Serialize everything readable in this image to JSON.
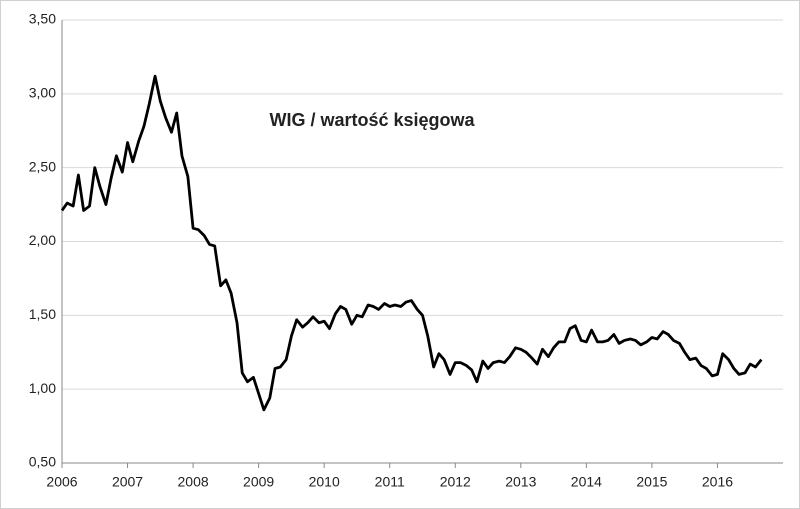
{
  "chart_data": {
    "type": "line",
    "title": "WIG / wartość księgowa",
    "x": [
      2006.0,
      2006.08,
      2006.17,
      2006.25,
      2006.33,
      2006.42,
      2006.5,
      2006.58,
      2006.67,
      2006.75,
      2006.83,
      2006.92,
      2007.0,
      2007.08,
      2007.17,
      2007.25,
      2007.33,
      2007.42,
      2007.5,
      2007.58,
      2007.67,
      2007.75,
      2007.83,
      2007.92,
      2008.0,
      2008.08,
      2008.17,
      2008.25,
      2008.33,
      2008.42,
      2008.5,
      2008.58,
      2008.67,
      2008.75,
      2008.83,
      2008.92,
      2009.0,
      2009.08,
      2009.17,
      2009.25,
      2009.33,
      2009.42,
      2009.5,
      2009.58,
      2009.67,
      2009.75,
      2009.83,
      2009.92,
      2010.0,
      2010.08,
      2010.17,
      2010.25,
      2010.33,
      2010.42,
      2010.5,
      2010.58,
      2010.67,
      2010.75,
      2010.83,
      2010.92,
      2011.0,
      2011.08,
      2011.17,
      2011.25,
      2011.33,
      2011.42,
      2011.5,
      2011.58,
      2011.67,
      2011.75,
      2011.83,
      2011.92,
      2012.0,
      2012.08,
      2012.17,
      2012.25,
      2012.33,
      2012.42,
      2012.5,
      2012.58,
      2012.67,
      2012.75,
      2012.83,
      2012.92,
      2013.0,
      2013.08,
      2013.17,
      2013.25,
      2013.33,
      2013.42,
      2013.5,
      2013.58,
      2013.67,
      2013.75,
      2013.83,
      2013.92,
      2014.0,
      2014.08,
      2014.17,
      2014.25,
      2014.33,
      2014.42,
      2014.5,
      2014.58,
      2014.67,
      2014.75,
      2014.83,
      2014.92,
      2015.0,
      2015.08,
      2015.17,
      2015.25,
      2015.33,
      2015.42,
      2015.5,
      2015.58,
      2015.67,
      2015.75,
      2015.83,
      2015.92,
      2016.0,
      2016.08,
      2016.17,
      2016.25,
      2016.33,
      2016.42,
      2016.5,
      2016.58,
      2016.67
    ],
    "series": [
      {
        "color": "#000000",
        "values": [
          2.21,
          2.26,
          2.24,
          2.45,
          2.21,
          2.24,
          2.5,
          2.37,
          2.25,
          2.43,
          2.58,
          2.47,
          2.67,
          2.54,
          2.68,
          2.78,
          2.93,
          3.12,
          2.95,
          2.84,
          2.74,
          2.87,
          2.58,
          2.44,
          2.09,
          2.08,
          2.04,
          1.98,
          1.97,
          1.7,
          1.74,
          1.65,
          1.45,
          1.11,
          1.05,
          1.08,
          0.97,
          0.86,
          0.94,
          1.14,
          1.15,
          1.2,
          1.36,
          1.47,
          1.42,
          1.45,
          1.49,
          1.45,
          1.46,
          1.41,
          1.51,
          1.56,
          1.54,
          1.44,
          1.5,
          1.49,
          1.57,
          1.56,
          1.54,
          1.58,
          1.56,
          1.57,
          1.56,
          1.59,
          1.6,
          1.54,
          1.5,
          1.36,
          1.15,
          1.24,
          1.2,
          1.1,
          1.18,
          1.18,
          1.16,
          1.13,
          1.05,
          1.19,
          1.14,
          1.18,
          1.19,
          1.18,
          1.22,
          1.28,
          1.27,
          1.25,
          1.21,
          1.17,
          1.27,
          1.22,
          1.28,
          1.32,
          1.32,
          1.41,
          1.43,
          1.33,
          1.32,
          1.4,
          1.32,
          1.32,
          1.33,
          1.37,
          1.31,
          1.33,
          1.34,
          1.33,
          1.3,
          1.32,
          1.35,
          1.34,
          1.39,
          1.37,
          1.33,
          1.31,
          1.25,
          1.2,
          1.21,
          1.16,
          1.14,
          1.09,
          1.1,
          1.24,
          1.2,
          1.14,
          1.1,
          1.11,
          1.17,
          1.15,
          1.2
        ]
      }
    ],
    "xlim": [
      2006,
      2017
    ],
    "xticks": [
      2006,
      2007,
      2008,
      2009,
      2010,
      2011,
      2012,
      2013,
      2014,
      2015,
      2016
    ],
    "ylim": [
      0.5,
      3.5
    ],
    "yticks": [
      {
        "value": 0.5,
        "label": "0,50"
      },
      {
        "value": 1,
        "label": "1,00"
      },
      {
        "value": 1.5,
        "label": "1,50"
      },
      {
        "value": 2,
        "label": "2,00"
      },
      {
        "value": 2.5,
        "label": "2,50"
      },
      {
        "value": 3,
        "label": "3,00"
      },
      {
        "value": 3.5,
        "label": "3,50"
      }
    ],
    "grid": true
  }
}
